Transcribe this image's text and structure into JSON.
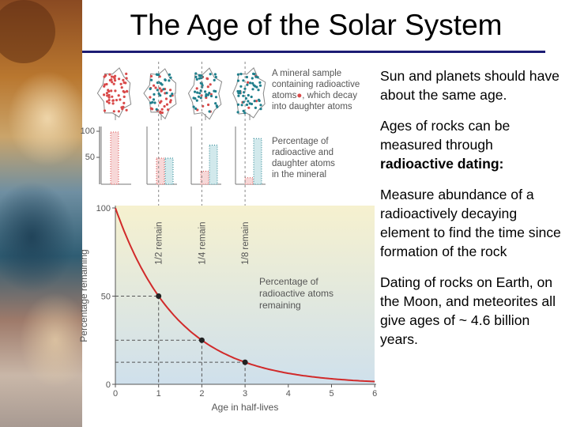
{
  "title": "The Age of the Solar System",
  "figure": {
    "caption_sample": [
      "A mineral sample",
      "containing radioactive",
      "atoms",
      ", which decay",
      "into daughter atoms"
    ],
    "caption_percent": [
      "Percentage of",
      "radioactive and",
      "daughter atoms",
      "in the mineral"
    ],
    "caption_curve": [
      "Percentage of",
      "radioactive atoms",
      "remaining"
    ],
    "bar_ticks": [
      "100",
      "50"
    ],
    "y_axis_label": "Percentage remaining",
    "x_axis_label": "Age in half-lives",
    "curve_y_ticks": [
      "100",
      "50",
      "0"
    ],
    "x_ticks": [
      "0",
      "1",
      "2",
      "3",
      "4",
      "5",
      "6"
    ],
    "remain_labels": [
      "1/2 remain",
      "1/4 remain",
      "1/8 remain"
    ],
    "colors": {
      "radioactive": "#d94a4a",
      "daughter": "#1f7f8c",
      "curve": "#d12a2a"
    }
  },
  "chart_data": {
    "type": "line",
    "x": [
      0,
      1,
      2,
      3,
      4,
      5,
      6
    ],
    "series": [
      {
        "values": [
          100,
          50,
          25,
          12.5,
          6.25,
          3.125,
          1.5625
        ]
      }
    ],
    "markers": [
      {
        "x": 1,
        "y": 50
      },
      {
        "x": 2,
        "y": 25
      },
      {
        "x": 3,
        "y": 12.5
      }
    ],
    "xlabel": "Age in half-lives",
    "ylabel": "Percentage remaining",
    "xlim": [
      0,
      6
    ],
    "ylim": [
      0,
      100
    ],
    "bars": [
      {
        "radioactive": 100,
        "daughter": 0
      },
      {
        "radioactive": 50,
        "daughter": 50
      },
      {
        "radioactive": 25,
        "daughter": 75
      },
      {
        "radioactive": 12.5,
        "daughter": 87.5
      }
    ]
  },
  "bullets": [
    {
      "text": "Sun and planets should have about the same age."
    },
    {
      "text": "Ages of rocks can be measured through ",
      "bold": "radioactive dating:"
    },
    {
      "text": "Measure abundance of a radioactively decaying element to find the time since formation of the rock"
    },
    {
      "text": "Dating of rocks on Earth, on the Moon, and meteorites all give ages of ~ 4.6 billion years."
    }
  ]
}
